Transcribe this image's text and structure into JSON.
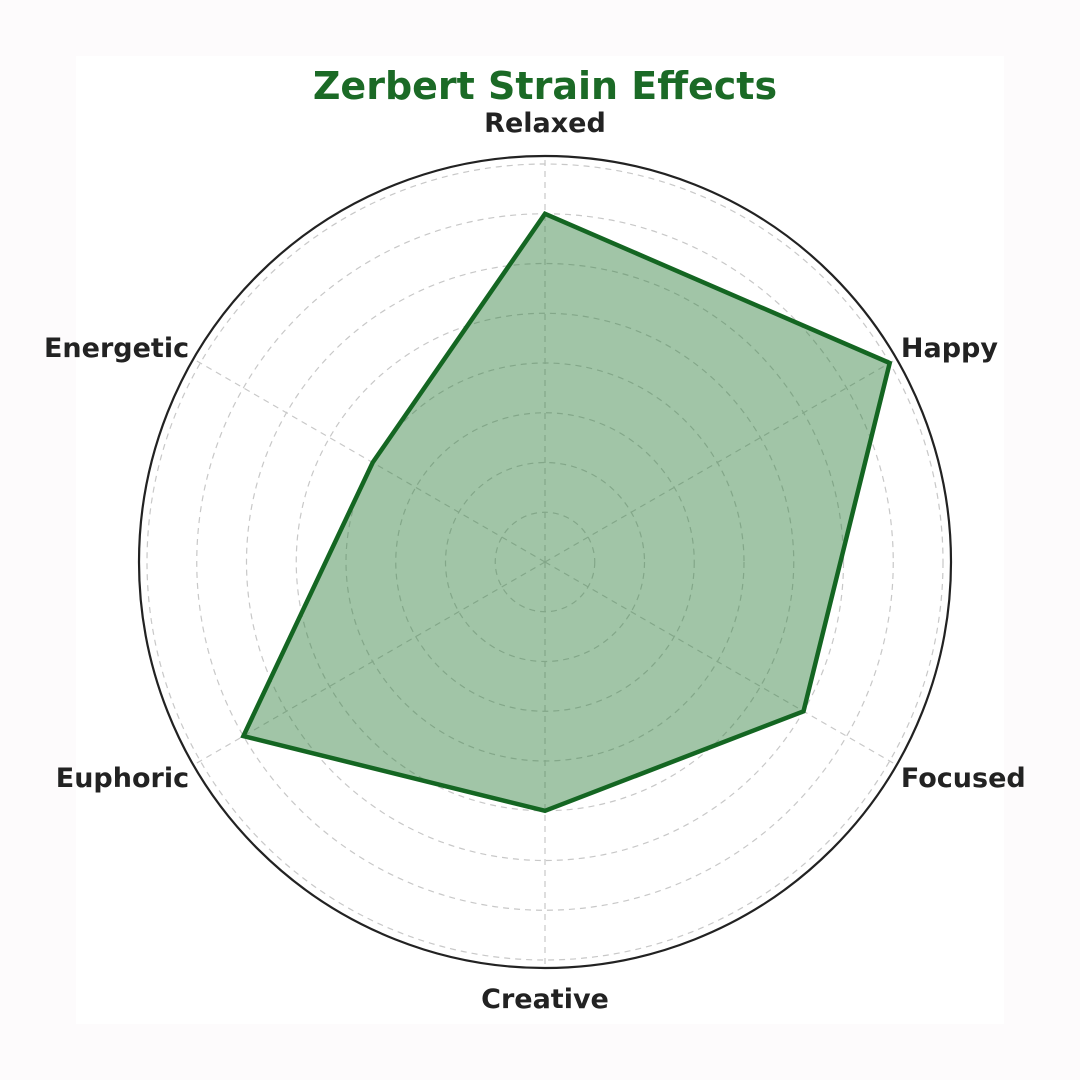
{
  "chart_data": {
    "type": "radar",
    "title": "Zerbert Strain Effects",
    "categories": [
      "Relaxed",
      "Happy",
      "Focused",
      "Creative",
      "Euphoric",
      "Energetic"
    ],
    "values": [
      7,
      8,
      6,
      5,
      7,
      4
    ],
    "rlim": [
      0,
      8
    ],
    "grid": true,
    "colors": {
      "title": "#1b6a26",
      "line": "#146622",
      "fill": "#2f7f3b",
      "grid": "#c8c8c8",
      "frame": "#222222"
    }
  }
}
